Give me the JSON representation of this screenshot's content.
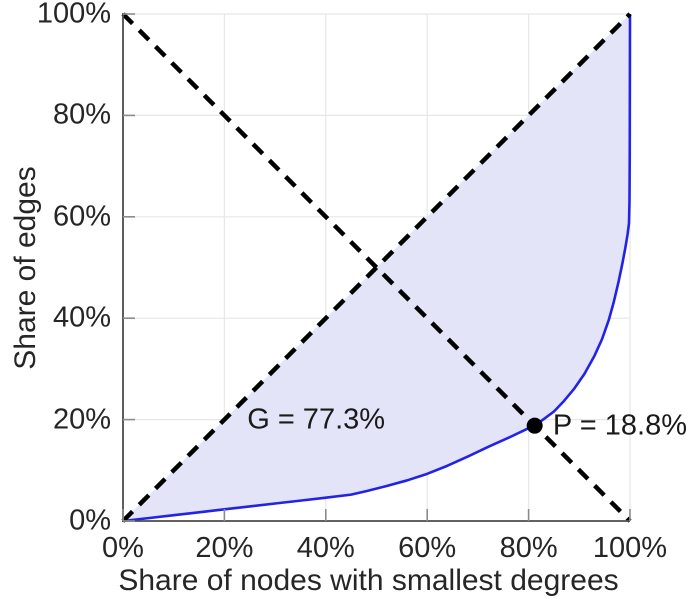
{
  "chart_data": {
    "type": "line",
    "title": "",
    "xlabel": "Share of nodes with smallest degrees",
    "ylabel": "Share of edges",
    "xlim": [
      0,
      100
    ],
    "ylim": [
      0,
      100
    ],
    "grid": true,
    "legend": "none",
    "x_ticks": [
      {
        "value": 0,
        "label": "0%"
      },
      {
        "value": 20,
        "label": "20%"
      },
      {
        "value": 40,
        "label": "40%"
      },
      {
        "value": 60,
        "label": "60%"
      },
      {
        "value": 80,
        "label": "80%"
      },
      {
        "value": 100,
        "label": "100%"
      }
    ],
    "y_ticks": [
      {
        "value": 0,
        "label": "0%"
      },
      {
        "value": 20,
        "label": "20%"
      },
      {
        "value": 40,
        "label": "40%"
      },
      {
        "value": 60,
        "label": "60%"
      },
      {
        "value": 80,
        "label": "80%"
      },
      {
        "value": 100,
        "label": "100%"
      }
    ],
    "series": [
      {
        "name": "lorenz-curve",
        "color": "#2323e6",
        "style": "solid",
        "points": [
          [
            0,
            0
          ],
          [
            5,
            0.57
          ],
          [
            10,
            1.15
          ],
          [
            15,
            1.72
          ],
          [
            20,
            2.3
          ],
          [
            25,
            2.87
          ],
          [
            30,
            3.45
          ],
          [
            35,
            4.02
          ],
          [
            40,
            4.6
          ],
          [
            45,
            5.2
          ],
          [
            48,
            5.9
          ],
          [
            52,
            6.9
          ],
          [
            56,
            8.0
          ],
          [
            60,
            9.3
          ],
          [
            64,
            10.9
          ],
          [
            68,
            12.7
          ],
          [
            72,
            14.6
          ],
          [
            76,
            16.4
          ],
          [
            80,
            18.3
          ],
          [
            81.2,
            18.8
          ],
          [
            83,
            20.1
          ],
          [
            85,
            21.6
          ],
          [
            87,
            23.7
          ],
          [
            89,
            26.1
          ],
          [
            91,
            29.0
          ],
          [
            93,
            32.6
          ],
          [
            94.5,
            35.9
          ],
          [
            95.8,
            39.6
          ],
          [
            96.8,
            43.2
          ],
          [
            97.7,
            47.0
          ],
          [
            98.5,
            50.8
          ],
          [
            99.1,
            54.0
          ],
          [
            99.5,
            56.4
          ],
          [
            99.8,
            58.7
          ],
          [
            99.9,
            63.0
          ],
          [
            99.95,
            72.0
          ],
          [
            100,
            100
          ]
        ]
      },
      {
        "name": "equality-diagonal",
        "color": "#000000",
        "style": "dashed",
        "points": [
          [
            0,
            0
          ],
          [
            100,
            100
          ]
        ]
      },
      {
        "name": "anti-diagonal",
        "color": "#000000",
        "style": "dashed",
        "points": [
          [
            0,
            100
          ],
          [
            100,
            0
          ]
        ]
      }
    ],
    "fill_between": {
      "upper": "equality-diagonal",
      "lower": "lorenz-curve",
      "color": "#e4e4f8"
    },
    "point_marker": {
      "x": 81.2,
      "y": 18.8,
      "radius": 8,
      "color": "#000000"
    },
    "annotations": [
      {
        "text": "G = 77.3%",
        "x": 24.5,
        "y": 20.0,
        "align": "left"
      },
      {
        "text": "P = 18.8%",
        "x": 84.8,
        "y": 18.8,
        "align": "left"
      }
    ],
    "gini_percent": 77.3,
    "p_percent": 18.8,
    "colors": {
      "curve": "#2323e6",
      "fill": "#e4e4f8",
      "dashed": "#000000",
      "grid": "#e7e7e7",
      "axis": "#4d4d4d",
      "tick": "#8c8c8c",
      "text": "#262626",
      "marker": "#000000"
    }
  }
}
